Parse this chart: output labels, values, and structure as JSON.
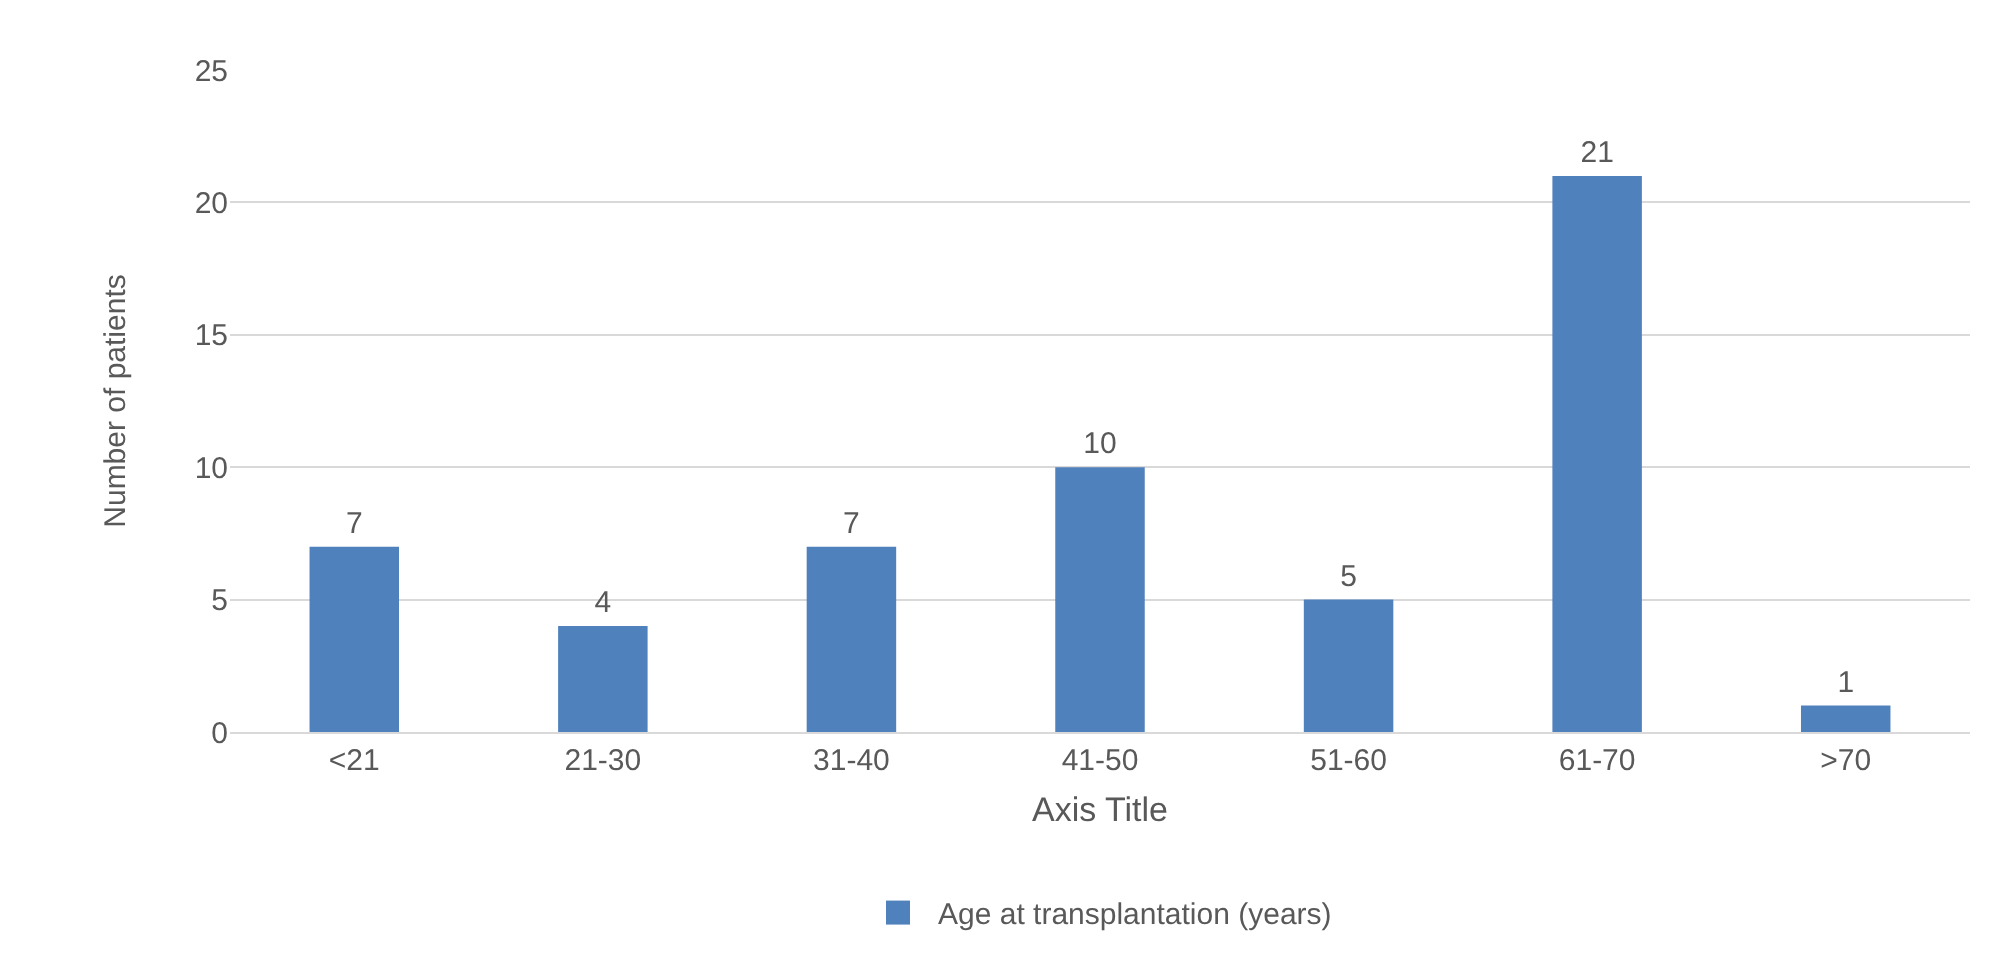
{
  "chart_data": {
    "type": "bar",
    "xlabel": "Axis Title",
    "ylabel": "Number of patients",
    "categories": [
      "<21",
      "21-30",
      "31-40",
      "41-50",
      "51-60",
      "61-70",
      ">70"
    ],
    "series": [
      {
        "name": "Age at transplantation (years)",
        "color": "#4f81bd",
        "values": [
          7,
          4,
          7,
          10,
          5,
          21,
          1
        ]
      }
    ],
    "ylim": [
      0,
      25
    ],
    "yticks": [
      0,
      5,
      10,
      15,
      20,
      25
    ],
    "grid": "y",
    "legend": "bottom",
    "data_labels": true
  }
}
